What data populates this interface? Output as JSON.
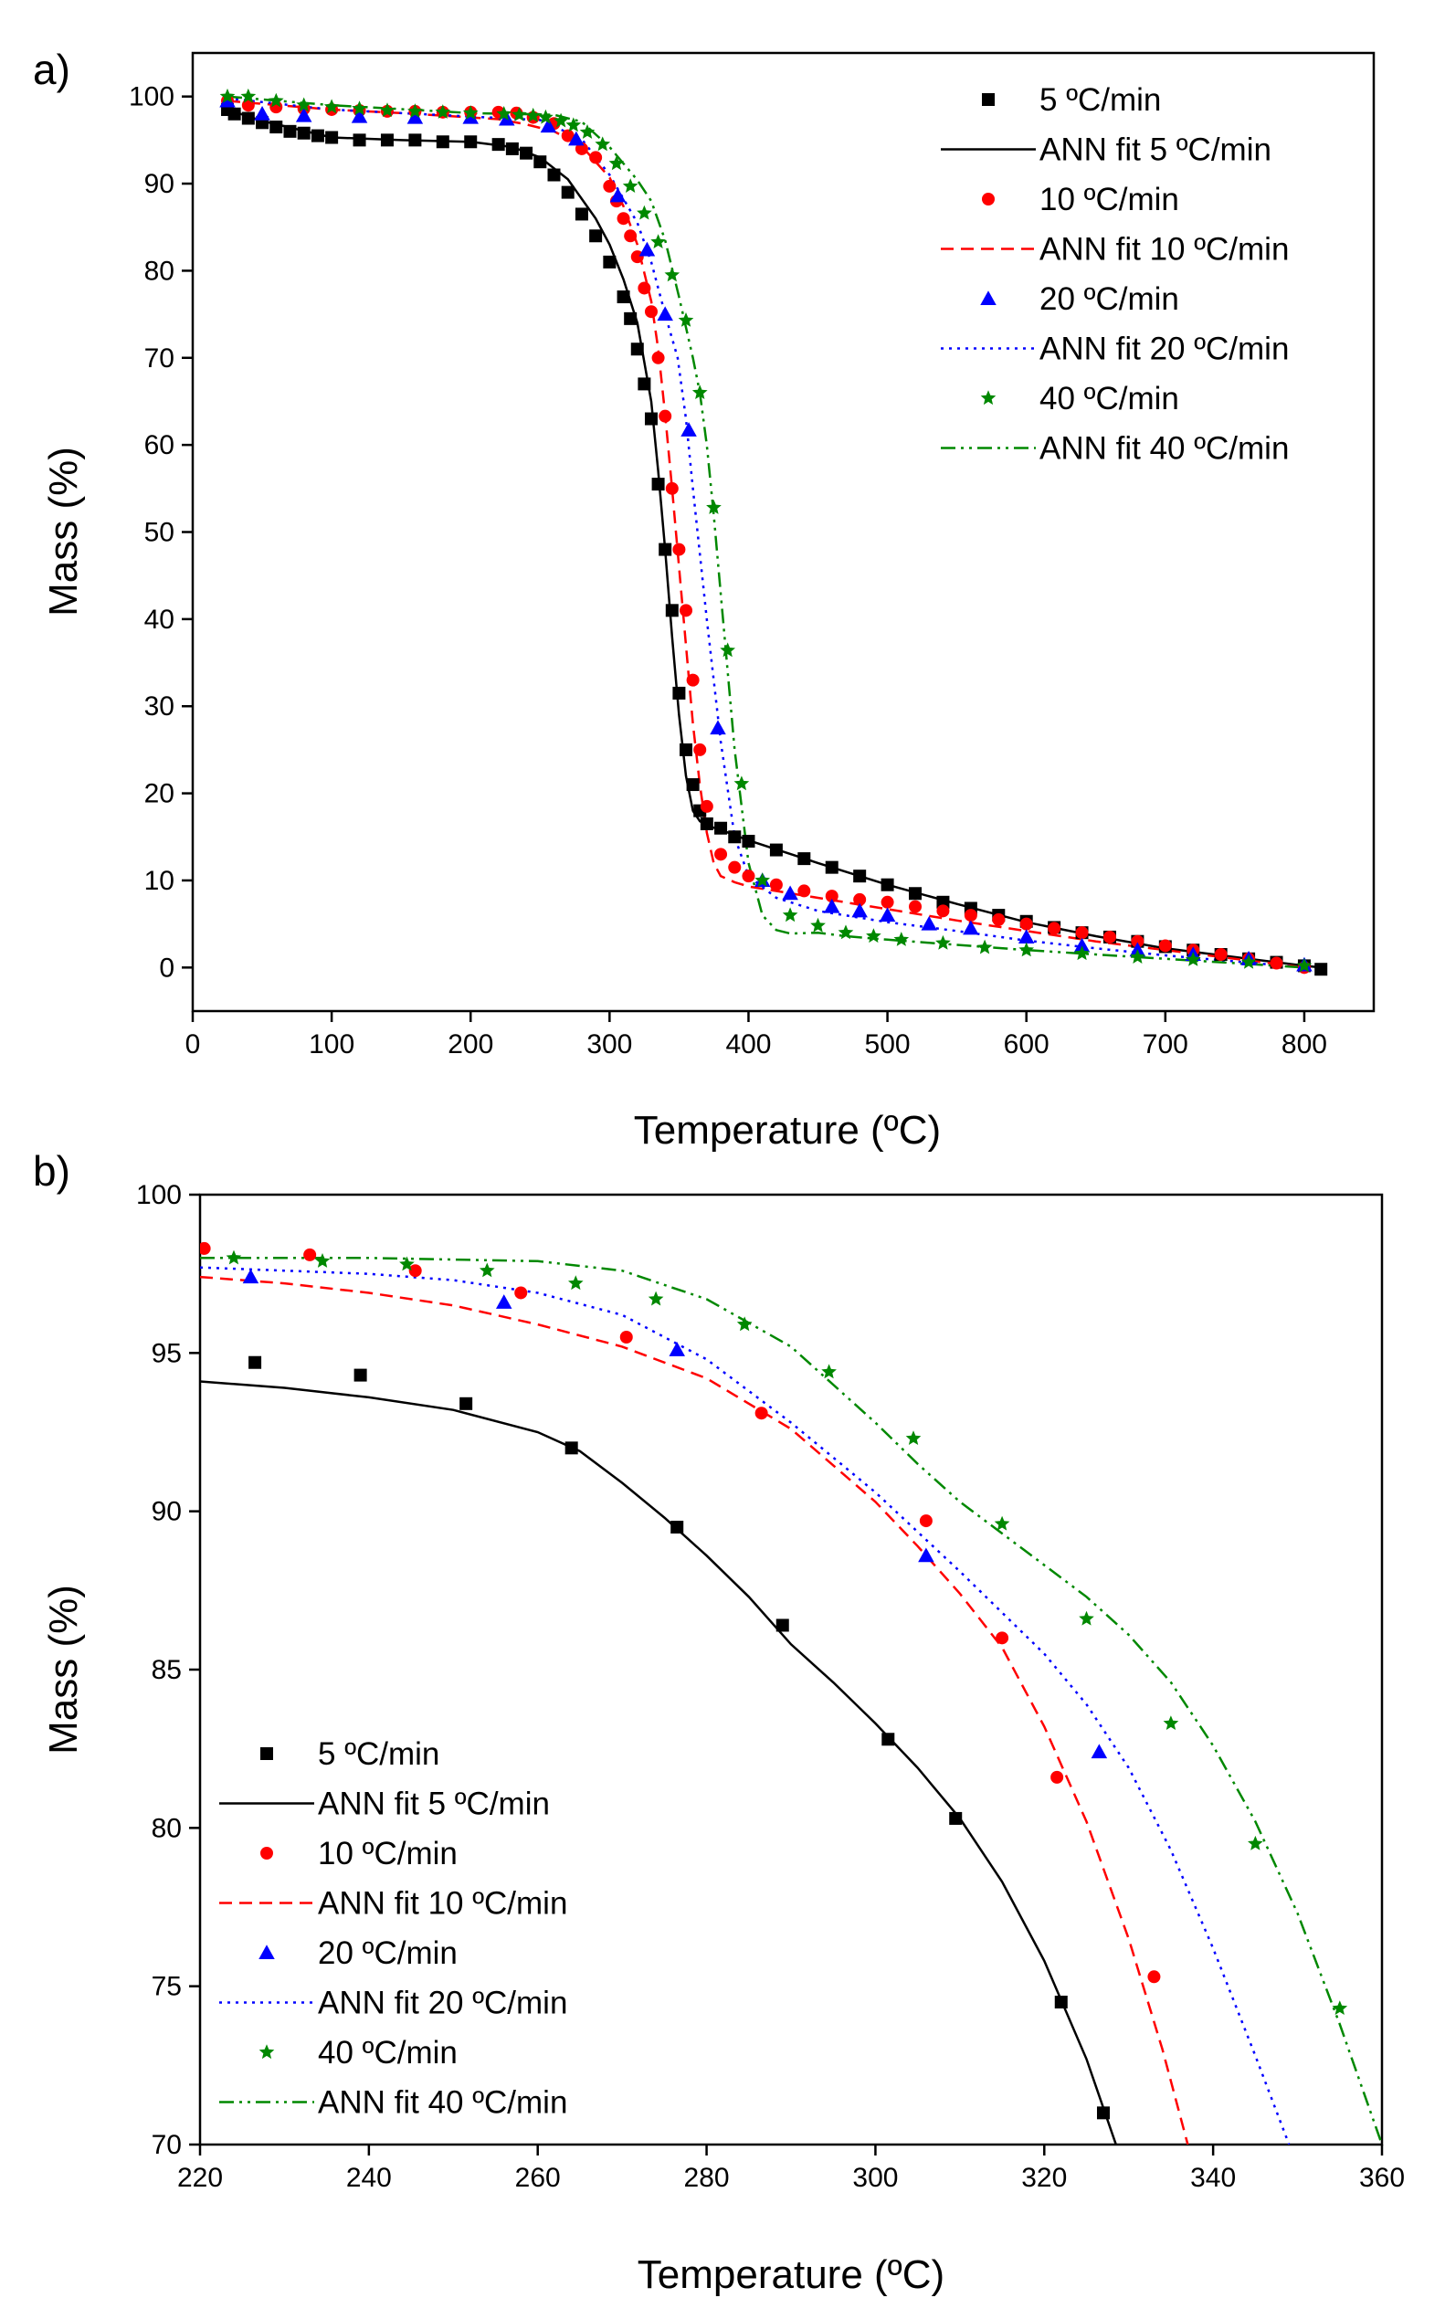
{
  "chart_data": [
    {
      "panel_label": "a)",
      "type": "scatter",
      "xlabel": "Temperature (ºC)",
      "ylabel": "Mass (%)",
      "xlim": [
        0,
        850
      ],
      "ylim": [
        -5,
        105
      ],
      "xticks": [
        0,
        100,
        200,
        300,
        400,
        500,
        600,
        700,
        800
      ],
      "yticks": [
        0,
        10,
        20,
        30,
        40,
        50,
        60,
        70,
        80,
        90,
        100
      ],
      "legend_position": "top-right",
      "series": [
        {
          "name": "5 ºC/min",
          "kind": "markers",
          "marker": "square",
          "color": "#000000",
          "x": [
            25,
            30,
            40,
            50,
            60,
            70,
            80,
            90,
            100,
            120,
            140,
            160,
            180,
            200,
            220,
            230,
            240,
            250,
            260,
            270,
            280,
            290,
            300,
            310,
            315,
            320,
            325,
            330,
            335,
            340,
            345,
            350,
            355,
            360,
            365,
            370,
            380,
            390,
            400,
            420,
            440,
            460,
            480,
            500,
            520,
            540,
            560,
            580,
            600,
            620,
            640,
            660,
            680,
            700,
            720,
            740,
            760,
            780,
            800,
            812
          ],
          "y": [
            98.5,
            98,
            97.5,
            97,
            96.5,
            96,
            95.8,
            95.5,
            95.3,
            95,
            95,
            95,
            94.8,
            94.8,
            94.5,
            94,
            93.5,
            92.5,
            91,
            89,
            86.5,
            84,
            81,
            77,
            74.5,
            71,
            67,
            63,
            55.5,
            48,
            41,
            31.5,
            25,
            21,
            18,
            16.5,
            16,
            15,
            14.5,
            13.5,
            12.5,
            11.5,
            10.5,
            9.5,
            8.5,
            7.5,
            6.8,
            6,
            5.3,
            4.6,
            4,
            3.5,
            3,
            2.4,
            2,
            1.5,
            1,
            0.6,
            0.2,
            -0.2
          ]
        },
        {
          "name": "ANN fit 5 ºC/min",
          "kind": "line",
          "dash": "solid",
          "color": "#000000",
          "x": [
            25,
            50,
            100,
            150,
            200,
            230,
            250,
            270,
            290,
            300,
            310,
            320,
            330,
            335,
            340,
            345,
            350,
            355,
            360,
            365,
            370,
            380,
            400,
            450,
            500,
            550,
            600,
            650,
            700,
            750,
            800,
            812
          ],
          "y": [
            98.5,
            97.2,
            95.3,
            95,
            94.8,
            94.2,
            93,
            90.5,
            86,
            83,
            79,
            74,
            65,
            57,
            48,
            38,
            29,
            22,
            18,
            16.8,
            16.3,
            15.8,
            14.6,
            12,
            9.5,
            7.3,
            5.2,
            3.6,
            2.2,
            1.2,
            0.2,
            0
          ]
        },
        {
          "name": "10 ºC/min",
          "kind": "markers",
          "marker": "circle",
          "color": "#ff0000",
          "x": [
            25,
            40,
            60,
            80,
            100,
            120,
            140,
            160,
            180,
            200,
            220,
            233,
            245,
            260,
            270,
            280,
            290,
            300,
            305,
            310,
            315,
            320,
            325,
            330,
            335,
            340,
            345,
            350,
            355,
            360,
            365,
            370,
            380,
            390,
            400,
            420,
            440,
            460,
            480,
            500,
            520,
            540,
            560,
            580,
            600,
            620,
            640,
            660,
            680,
            700,
            720,
            740,
            760,
            780,
            800
          ],
          "y": [
            99.5,
            99,
            98.8,
            98.6,
            98.5,
            98.4,
            98.3,
            98.3,
            98.2,
            98.2,
            98.2,
            98.1,
            97.6,
            96.9,
            95.5,
            94,
            93,
            89.7,
            88,
            86,
            84,
            81.6,
            78,
            75.3,
            70,
            63.3,
            55,
            48,
            41,
            33,
            25,
            18.5,
            13,
            11.5,
            10.5,
            9.5,
            8.8,
            8.2,
            7.8,
            7.5,
            7,
            6.5,
            6,
            5.5,
            5,
            4.5,
            4,
            3.5,
            3,
            2.5,
            2,
            1.5,
            1,
            0.5,
            0
          ]
        },
        {
          "name": "ANN fit 10 ºC/min",
          "kind": "line",
          "dash": "dashed",
          "color": "#ff0000",
          "x": [
            25,
            100,
            150,
            200,
            220,
            240,
            260,
            280,
            300,
            310,
            320,
            330,
            335,
            340,
            345,
            350,
            355,
            360,
            365,
            370,
            375,
            380,
            390,
            400,
            450,
            500,
            550,
            600,
            650,
            700,
            750,
            800
          ],
          "y": [
            99.5,
            98.5,
            98.1,
            97.6,
            97.4,
            96.8,
            96,
            94.3,
            90.7,
            87.4,
            83,
            76.5,
            71,
            63.5,
            55,
            46,
            37,
            28,
            21,
            15.5,
            12,
            10.5,
            9.8,
            9.3,
            8,
            6.7,
            5.4,
            4.2,
            3,
            2,
            1,
            0
          ]
        },
        {
          "name": "20 ºC/min",
          "kind": "markers",
          "marker": "triangle",
          "color": "#0000ff",
          "x": [
            25,
            50,
            80,
            120,
            160,
            200,
            226,
            256,
            276,
            306,
            327,
            340,
            357,
            378,
            410,
            430,
            460,
            480,
            500,
            530,
            560,
            600,
            640,
            680,
            720,
            760,
            800
          ],
          "y": [
            99.5,
            98,
            97.8,
            97.7,
            97.6,
            97.6,
            97.4,
            96.6,
            95.1,
            88.6,
            82.4,
            75,
            61.7,
            27.5,
            10,
            8.5,
            7,
            6.5,
            6,
            5,
            4.5,
            3.5,
            2.5,
            2,
            1.5,
            1,
            0.3
          ]
        },
        {
          "name": "ANN fit 20 ºC/min",
          "kind": "line",
          "dash": "dotted",
          "color": "#0000ff",
          "x": [
            25,
            100,
            200,
            250,
            280,
            300,
            320,
            330,
            340,
            349,
            355,
            360,
            370,
            380,
            390,
            400,
            420,
            450,
            500,
            550,
            600,
            650,
            700,
            750,
            800
          ],
          "y": [
            99.8,
            98.5,
            97.7,
            97.3,
            95.1,
            91,
            85.5,
            81,
            75,
            70,
            63,
            55,
            40,
            26,
            15,
            10.5,
            8,
            6.5,
            5.2,
            4.2,
            3.1,
            2.2,
            1.4,
            0.7,
            0
          ]
        },
        {
          "name": "40 ºC/min",
          "kind": "markers",
          "marker": "star",
          "color": "#008800",
          "x": [
            25,
            40,
            60,
            80,
            100,
            120,
            140,
            160,
            180,
            200,
            224,
            235,
            245,
            254,
            265,
            274,
            284,
            295,
            305,
            315,
            325,
            335,
            345,
            355,
            365,
            375,
            385,
            395,
            410,
            430,
            450,
            470,
            490,
            510,
            540,
            570,
            600,
            640,
            680,
            720,
            760,
            800
          ],
          "y": [
            100,
            100,
            99.5,
            99,
            98.8,
            98.6,
            98.4,
            98.3,
            98.2,
            98.1,
            98,
            97.9,
            97.8,
            97.6,
            97.2,
            96.7,
            95.9,
            94.5,
            92.3,
            89.7,
            86.6,
            83.3,
            79.5,
            74.3,
            66,
            52.8,
            36.4,
            21.1,
            10,
            6,
            4.8,
            4,
            3.6,
            3.2,
            2.8,
            2.3,
            2,
            1.6,
            1.2,
            0.9,
            0.6,
            0.2
          ]
        },
        {
          "name": "ANN fit 40 ºC/min",
          "kind": "line",
          "dash": "dashdotdot",
          "color": "#008800",
          "x": [
            25,
            100,
            200,
            260,
            280,
            300,
            320,
            330,
            340,
            350,
            360,
            365,
            370,
            375,
            380,
            390,
            400,
            410,
            420,
            430,
            450,
            470,
            500,
            550,
            600,
            650,
            700,
            750,
            800
          ],
          "y": [
            100,
            99,
            98.1,
            97.9,
            97.1,
            94.2,
            90.4,
            88,
            83.5,
            77,
            70,
            66,
            60,
            52,
            43,
            25,
            12,
            6,
            4.3,
            3.9,
            4,
            3.6,
            3.2,
            2.6,
            2,
            1.5,
            1,
            0.5,
            0
          ]
        }
      ]
    },
    {
      "panel_label": "b)",
      "type": "scatter",
      "xlabel": "Temperature (ºC)",
      "ylabel": "Mass (%)",
      "xlim": [
        220,
        360
      ],
      "ylim": [
        70,
        100
      ],
      "xticks": [
        220,
        240,
        260,
        280,
        300,
        320,
        340,
        360
      ],
      "yticks": [
        70,
        75,
        80,
        85,
        90,
        95,
        100
      ],
      "legend_position": "bottom-left",
      "series": [
        {
          "name": "5 ºC/min",
          "kind": "markers",
          "marker": "square",
          "color": "#000000",
          "x": [
            226.5,
            239,
            251.5,
            264,
            276.5,
            289,
            301.5,
            309.5,
            322,
            327
          ],
          "y": [
            94.7,
            94.3,
            93.4,
            92,
            89.5,
            86.4,
            82.8,
            80.3,
            74.5,
            71
          ]
        },
        {
          "name": "ANN fit 5 ºC/min",
          "kind": "line",
          "dash": "solid",
          "color": "#000000",
          "x": [
            220,
            230,
            240,
            250,
            260,
            265,
            270,
            275,
            280,
            285,
            290,
            295,
            300,
            305,
            310,
            315,
            320,
            325,
            328.5
          ],
          "y": [
            94.1,
            93.9,
            93.6,
            93.2,
            92.5,
            91.9,
            90.9,
            89.8,
            88.6,
            87.3,
            85.8,
            84.6,
            83.3,
            81.9,
            80.3,
            78.3,
            75.8,
            72.7,
            70
          ]
        },
        {
          "name": "10 ºC/min",
          "kind": "markers",
          "marker": "circle",
          "color": "#ff0000",
          "x": [
            220.5,
            233,
            245.5,
            258,
            270.5,
            286.5,
            306,
            315,
            321.5,
            333
          ],
          "y": [
            98.3,
            98.1,
            97.6,
            96.9,
            95.5,
            93.1,
            89.7,
            86,
            81.6,
            75.3
          ]
        },
        {
          "name": "ANN fit 10 ºC/min",
          "kind": "line",
          "dash": "dashed",
          "color": "#ff0000",
          "x": [
            220,
            230,
            240,
            250,
            260,
            270,
            280,
            290,
            300,
            305,
            310,
            315,
            320,
            325,
            330,
            334,
            337
          ],
          "y": [
            97.4,
            97.2,
            96.9,
            96.5,
            95.9,
            95.2,
            94.2,
            92.6,
            90.3,
            88.9,
            87.4,
            85.7,
            83.2,
            80.2,
            76.5,
            73,
            70
          ]
        },
        {
          "name": "20 ºC/min",
          "kind": "markers",
          "marker": "triangle",
          "color": "#0000ff",
          "x": [
            226,
            256,
            276.5,
            306,
            326.5
          ],
          "y": [
            97.4,
            96.6,
            95.1,
            88.6,
            82.4
          ]
        },
        {
          "name": "ANN fit 20 ºC/min",
          "kind": "line",
          "dash": "dotted",
          "color": "#0000ff",
          "x": [
            220,
            230,
            240,
            250,
            260,
            270,
            280,
            290,
            300,
            310,
            315,
            320,
            325,
            330,
            335,
            340,
            345,
            349
          ],
          "y": [
            97.7,
            97.6,
            97.5,
            97.3,
            96.9,
            96.2,
            94.8,
            92.8,
            90.6,
            88.1,
            86.8,
            85.5,
            83.9,
            81.9,
            79.3,
            76.2,
            72.8,
            70
          ]
        },
        {
          "name": "40 ºC/min",
          "kind": "markers",
          "marker": "star",
          "color": "#008800",
          "x": [
            224,
            234.5,
            244.5,
            254,
            264.5,
            274,
            284.5,
            294.5,
            304.5,
            315,
            325,
            335,
            345,
            355
          ],
          "y": [
            98,
            97.9,
            97.8,
            97.6,
            97.2,
            96.7,
            95.9,
            94.4,
            92.3,
            89.6,
            86.6,
            83.3,
            79.5,
            74.3
          ]
        },
        {
          "name": "ANN fit 40 ºC/min",
          "kind": "line",
          "dash": "dashdotdot",
          "color": "#008800",
          "x": [
            220,
            240,
            260,
            270,
            280,
            290,
            300,
            305,
            310,
            320,
            325,
            330,
            335,
            340,
            345,
            350,
            355,
            360
          ],
          "y": [
            98,
            98,
            97.9,
            97.6,
            96.7,
            95.2,
            92.8,
            91.5,
            90.3,
            88.3,
            87.3,
            86.1,
            84.6,
            82.6,
            80.2,
            77.3,
            73.8,
            70
          ]
        }
      ]
    }
  ]
}
